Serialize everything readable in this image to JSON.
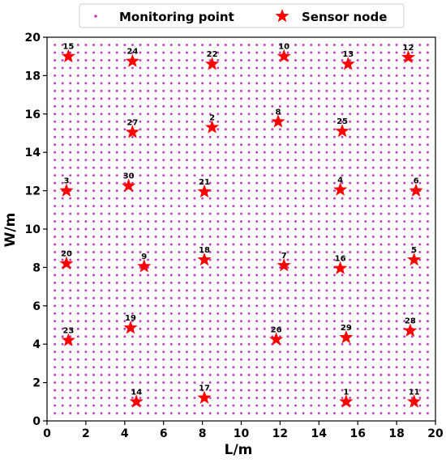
{
  "chart_data": {
    "type": "scatter",
    "xlabel": "L/m",
    "ylabel": "W/m",
    "xlim": [
      0,
      20
    ],
    "ylim": [
      0,
      20
    ],
    "xticks": [
      "0",
      "2",
      "4",
      "6",
      "8",
      "10",
      "12",
      "14",
      "16",
      "18",
      "20"
    ],
    "yticks": [
      "0",
      "2",
      "4",
      "6",
      "8",
      "10",
      "12",
      "14",
      "16",
      "18",
      "20"
    ],
    "grid": false,
    "legend_position": "top",
    "legend": [
      {
        "label": "Monitoring point",
        "marker": "dot",
        "color": "#bf3fbf"
      },
      {
        "label": "Sensor node",
        "marker": "star",
        "color": "#ff0000"
      }
    ],
    "monitoring_grid": {
      "start": 0.4,
      "step": 0.4,
      "end": 19.6
    },
    "sensor_nodes": [
      {
        "id": "1",
        "x": 15.4,
        "y": 1.0
      },
      {
        "id": "2",
        "x": 8.5,
        "y": 15.3
      },
      {
        "id": "3",
        "x": 1.0,
        "y": 12.0
      },
      {
        "id": "4",
        "x": 15.1,
        "y": 12.05
      },
      {
        "id": "5",
        "x": 18.9,
        "y": 8.4
      },
      {
        "id": "6",
        "x": 19.0,
        "y": 12.0
      },
      {
        "id": "7",
        "x": 12.2,
        "y": 8.1
      },
      {
        "id": "8",
        "x": 11.9,
        "y": 15.6
      },
      {
        "id": "9",
        "x": 5.0,
        "y": 8.05
      },
      {
        "id": "10",
        "x": 12.2,
        "y": 19.0
      },
      {
        "id": "11",
        "x": 18.9,
        "y": 1.0
      },
      {
        "id": "12",
        "x": 18.6,
        "y": 18.95
      },
      {
        "id": "13",
        "x": 15.5,
        "y": 18.6
      },
      {
        "id": "14",
        "x": 4.6,
        "y": 1.0
      },
      {
        "id": "15",
        "x": 1.1,
        "y": 19.0
      },
      {
        "id": "16",
        "x": 15.1,
        "y": 7.95
      },
      {
        "id": "17",
        "x": 8.1,
        "y": 1.2
      },
      {
        "id": "18",
        "x": 8.1,
        "y": 8.4
      },
      {
        "id": "19",
        "x": 4.3,
        "y": 4.85
      },
      {
        "id": "20",
        "x": 1.0,
        "y": 8.2
      },
      {
        "id": "21",
        "x": 8.1,
        "y": 11.95
      },
      {
        "id": "22",
        "x": 8.5,
        "y": 18.6
      },
      {
        "id": "23",
        "x": 1.1,
        "y": 4.2
      },
      {
        "id": "24",
        "x": 4.4,
        "y": 18.75
      },
      {
        "id": "25",
        "x": 15.2,
        "y": 15.1
      },
      {
        "id": "26",
        "x": 11.8,
        "y": 4.25
      },
      {
        "id": "27",
        "x": 4.4,
        "y": 15.05
      },
      {
        "id": "28",
        "x": 18.7,
        "y": 4.7
      },
      {
        "id": "29",
        "x": 15.4,
        "y": 4.35
      },
      {
        "id": "30",
        "x": 4.2,
        "y": 12.25
      }
    ]
  }
}
